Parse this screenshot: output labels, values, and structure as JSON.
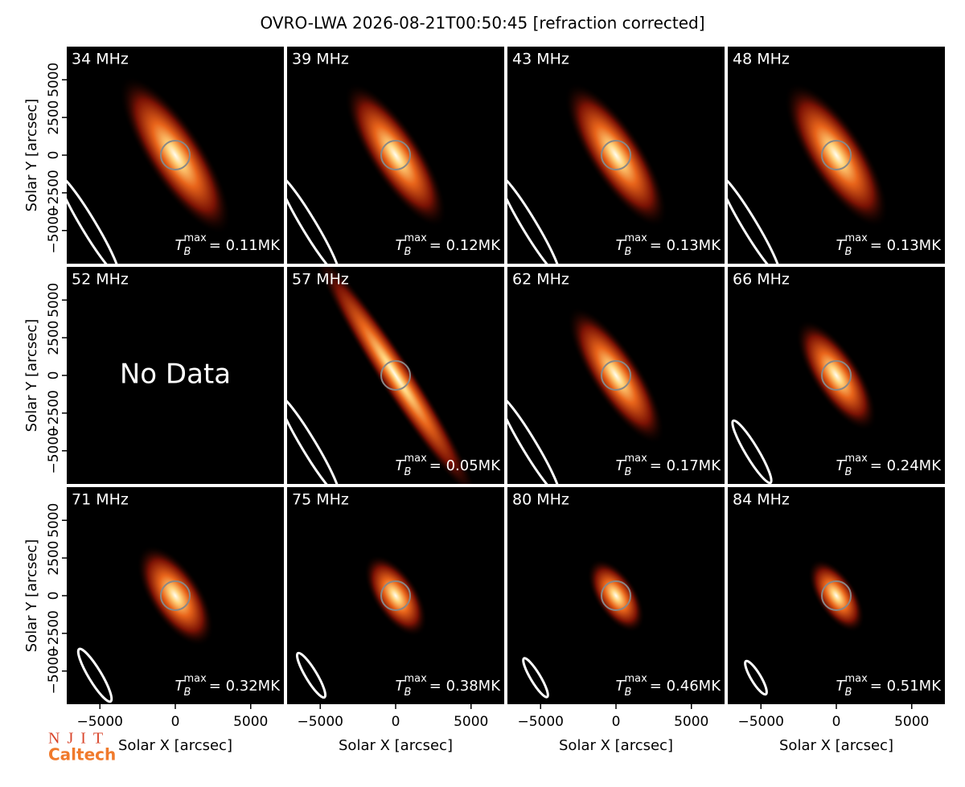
{
  "chart_data": {
    "type": "image_grid",
    "title": "OVRO-LWA 2026-08-21T00:50:45 [refraction corrected]",
    "xlabel": "Solar X [arcsec]",
    "ylabel": "Solar Y [arcsec]",
    "xlim": [
      -7200,
      7200
    ],
    "ylim": [
      -7200,
      7200
    ],
    "xticks": [
      {
        "value": -5000,
        "label": "−5000"
      },
      0,
      5000
    ],
    "yticks": [
      5000,
      2500,
      0,
      {
        "value": -2500,
        "label": "−2500"
      },
      {
        "value": -5000,
        "label": "−5000"
      }
    ],
    "tb_symbol": {
      "base": "T",
      "sub": "B",
      "sup": "max"
    },
    "panels": [
      {
        "label": "34 MHz",
        "tb_label": "= 0.11MK"
      },
      {
        "label": "39 MHz",
        "tb_label": "= 0.12MK"
      },
      {
        "label": "43 MHz",
        "tb_label": "= 0.13MK"
      },
      {
        "label": "48 MHz",
        "tb_label": "= 0.13MK"
      },
      {
        "label": "52 MHz",
        "note": "No Data"
      },
      {
        "label": "57 MHz",
        "tb_label": "= 0.05MK"
      },
      {
        "label": "62 MHz",
        "tb_label": "= 0.17MK"
      },
      {
        "label": "66 MHz",
        "tb_label": "= 0.24MK"
      },
      {
        "label": "71 MHz",
        "tb_label": "= 0.32MK"
      },
      {
        "label": "75 MHz",
        "tb_label": "= 0.38MK"
      },
      {
        "label": "80 MHz",
        "tb_label": "= 0.46MK"
      },
      {
        "label": "84 MHz",
        "tb_label": "= 0.51MK"
      }
    ],
    "logos": [
      "NJIT",
      "Caltech"
    ]
  }
}
